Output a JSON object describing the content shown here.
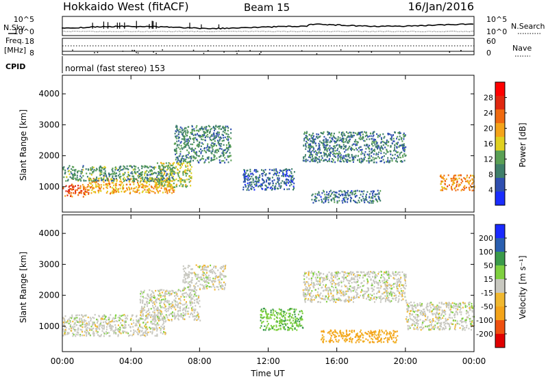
{
  "header": {
    "radar": "Hokkaido West (fitACF)",
    "beam": "Beam 15",
    "date": "16/Jan/2016"
  },
  "status_panel": {
    "nsky_label": "N.Sky",
    "nsearch_label": "N.Search",
    "noise_ticks_left": [
      "10^5",
      "10^0"
    ],
    "noise_ticks_right": [
      "10^5",
      "10^0"
    ],
    "freq_label": "Freq.",
    "freq_unit": "[MHz]",
    "freq_ticks": [
      "18",
      "8"
    ],
    "nave_label": "Nave",
    "nave_ticks": [
      "60",
      "0"
    ],
    "cpid_label": "CPID",
    "cpid_value": "normal (fast stereo) 153"
  },
  "colors": {
    "power_scale": [
      "#1a2dff",
      "#2f4fb0",
      "#3f7f6a",
      "#5aa055",
      "#e0d020",
      "#f4a41a",
      "#f06a10",
      "#e02810",
      "#ff0000"
    ],
    "velocity_scale": [
      "#e00000",
      "#ef5010",
      "#f4a41a",
      "#f0b830",
      "#c8c8c0",
      "#7fd040",
      "#3a9a4a",
      "#2a5fb0",
      "#1a2aff"
    ]
  },
  "chart_data": [
    {
      "type": "heatmap",
      "name": "power",
      "ylabel": "Slant Range [km]",
      "yticks": [
        "4000",
        "3000",
        "2000",
        "1000"
      ],
      "xticks": [
        "00:00",
        "04:00",
        "08:00",
        "12:00",
        "16:00",
        "20:00",
        "00:00"
      ],
      "xlabel": "",
      "colorbar_label": "Power [dB]",
      "colorbar_ticks": [
        "28",
        "24",
        "20",
        "16",
        "12",
        "8",
        "4"
      ],
      "ylim": [
        180,
        4600
      ],
      "xlim_hours": [
        0,
        24
      ],
      "echo_regions": [
        {
          "t0": 0.0,
          "t1": 1.5,
          "r0": 700,
          "r1": 1100,
          "level": 22
        },
        {
          "t0": 1.5,
          "t1": 6.5,
          "r0": 800,
          "r1": 1300,
          "level": 18
        },
        {
          "t0": 5.5,
          "t1": 7.5,
          "r0": 1000,
          "r1": 1800,
          "level": 14
        },
        {
          "t0": 0.0,
          "t1": 6.5,
          "r0": 1200,
          "r1": 1700,
          "level": 10
        },
        {
          "t0": 6.5,
          "t1": 9.8,
          "r0": 1800,
          "r1": 3000,
          "level": 9
        },
        {
          "t0": 10.5,
          "t1": 13.5,
          "r0": 900,
          "r1": 1600,
          "level": 6
        },
        {
          "t0": 14.0,
          "t1": 20.0,
          "r0": 1800,
          "r1": 2800,
          "level": 8
        },
        {
          "t0": 14.5,
          "t1": 18.5,
          "r0": 500,
          "r1": 900,
          "level": 7
        },
        {
          "t0": 22.0,
          "t1": 24.0,
          "r0": 900,
          "r1": 1400,
          "level": 20
        }
      ]
    },
    {
      "type": "heatmap",
      "name": "velocity",
      "ylabel": "Slant Range [km]",
      "yticks": [
        "4000",
        "3000",
        "2000",
        "1000"
      ],
      "xticks": [
        "00:00",
        "04:00",
        "08:00",
        "12:00",
        "16:00",
        "20:00",
        "00:00"
      ],
      "xlabel": "Time UT",
      "colorbar_label": "Velocity [m s⁻¹]",
      "colorbar_ticks": [
        "200",
        "100",
        "50",
        "15",
        "-15",
        "-50",
        "-100",
        "-200"
      ],
      "ylim": [
        180,
        4600
      ],
      "xlim_hours": [
        0,
        24
      ],
      "echo_regions": [
        {
          "t0": 0.0,
          "t1": 6.0,
          "r0": 700,
          "r1": 1400,
          "level": 0
        },
        {
          "t0": 4.5,
          "t1": 8.0,
          "r0": 1200,
          "r1": 2200,
          "level": 0
        },
        {
          "t0": 7.0,
          "t1": 9.5,
          "r0": 2200,
          "r1": 3000,
          "level": 0
        },
        {
          "t0": 11.5,
          "t1": 14.0,
          "r0": 900,
          "r1": 1600,
          "level": 40
        },
        {
          "t0": 14.0,
          "t1": 20.0,
          "r0": 1800,
          "r1": 2800,
          "level": 0
        },
        {
          "t0": 15.0,
          "t1": 19.5,
          "r0": 500,
          "r1": 900,
          "level": -60
        },
        {
          "t0": 20.0,
          "t1": 24.0,
          "r0": 900,
          "r1": 1800,
          "level": 0
        }
      ]
    }
  ]
}
